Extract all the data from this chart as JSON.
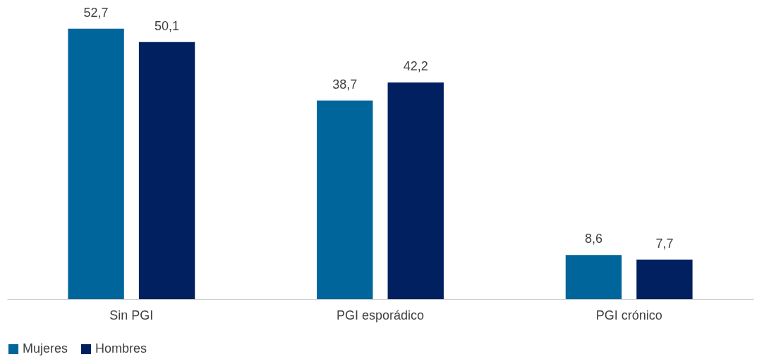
{
  "chart_data": {
    "type": "bar",
    "categories": [
      "Sin PGI",
      "PGI esporádico",
      "PGI crónico"
    ],
    "series": [
      {
        "name": "Mujeres",
        "color": "#00659a",
        "values": [
          52.7,
          38.7,
          8.6
        ],
        "value_labels": [
          "52,7",
          "38,7",
          "8,6"
        ]
      },
      {
        "name": "Hombres",
        "color": "#002060",
        "values": [
          50.1,
          42.2,
          7.7
        ],
        "value_labels": [
          "50,1",
          "42,2",
          "7,7"
        ]
      }
    ],
    "grid": false,
    "legend": "bottom"
  }
}
